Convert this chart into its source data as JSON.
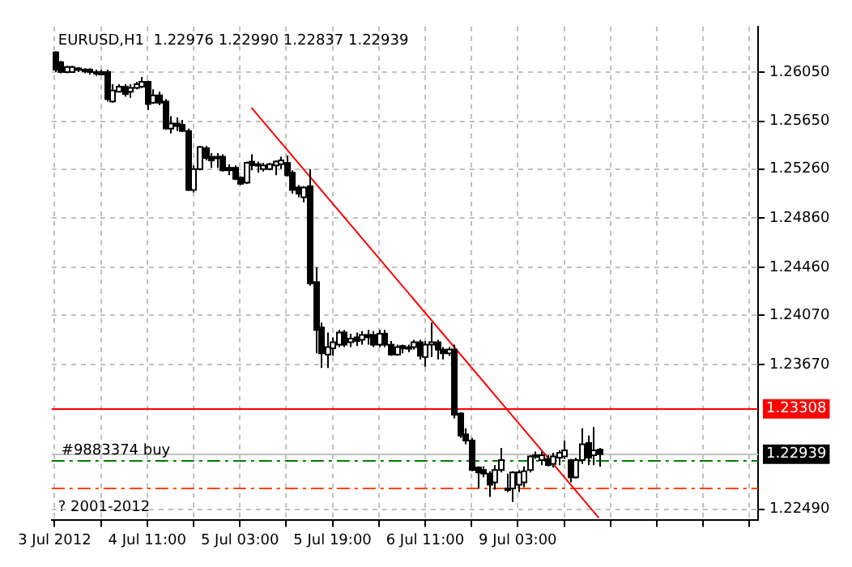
{
  "chart_data": {
    "type": "candlestick",
    "title": "EURUSD,H1  1.22976 1.22990 1.22837 1.22939",
    "categories": [
      "3 Jul 2012",
      null,
      null,
      null,
      null,
      null,
      null,
      null,
      null,
      null,
      null,
      null,
      null,
      null,
      null,
      null,
      "4 Jul 11:00",
      null,
      null,
      null,
      null,
      null,
      null,
      null,
      null,
      null,
      null,
      null,
      null,
      null,
      null,
      null,
      "5 Jul 03:00",
      null,
      null,
      null,
      null,
      null,
      null,
      null,
      null,
      null,
      null,
      null,
      null,
      null,
      null,
      null,
      "5 Jul 19:00",
      null,
      null,
      null,
      null,
      null,
      null,
      null,
      null,
      null,
      null,
      null,
      null,
      null,
      null,
      null,
      "6 Jul 11:00",
      null,
      null,
      null,
      null,
      null,
      null,
      null,
      null,
      null,
      null,
      null,
      null,
      null,
      null,
      null,
      "9 Jul 03:00",
      null,
      null,
      null,
      null,
      null,
      null,
      null,
      null,
      null,
      null,
      null,
      null,
      null,
      null,
      null,
      null,
      null,
      null,
      null,
      null,
      null,
      null,
      null,
      null,
      null,
      null,
      null,
      null,
      null,
      null,
      null,
      null,
      null,
      null,
      null,
      null,
      null,
      null,
      null,
      null,
      null
    ],
    "ohlc": [
      [
        1.2621,
        1.2622,
        1.2605,
        1.2607
      ],
      [
        1.2613,
        1.2614,
        1.2604,
        1.2605
      ],
      [
        1.2605,
        1.261,
        1.2604,
        1.2609
      ],
      [
        1.2605,
        1.261,
        1.2605,
        1.2609
      ],
      [
        1.2608,
        1.2609,
        1.2605,
        1.2607
      ],
      [
        1.2607,
        1.2608,
        1.2604,
        1.2606
      ],
      [
        1.2607,
        1.2608,
        1.2603,
        1.2605
      ],
      [
        1.2605,
        1.2607,
        1.2602,
        1.2604
      ],
      [
        1.2605,
        1.2607,
        1.2603,
        1.2603
      ],
      [
        1.2605,
        1.2607,
        1.2581,
        1.2583
      ],
      [
        1.2581,
        1.2595,
        1.258,
        1.259
      ],
      [
        1.2589,
        1.2595,
        1.2589,
        1.2593
      ],
      [
        1.2593,
        1.2595,
        1.2585,
        1.2587
      ],
      [
        1.2589,
        1.2595,
        1.2584,
        1.2592
      ],
      [
        1.2592,
        1.2597,
        1.2591,
        1.2595
      ],
      [
        1.2593,
        1.2601,
        1.2592,
        1.2597
      ],
      [
        1.2597,
        1.2598,
        1.2574,
        1.2579
      ],
      [
        1.258,
        1.2591,
        1.2579,
        1.2586
      ],
      [
        1.2586,
        1.2589,
        1.2578,
        1.258
      ],
      [
        1.2581,
        1.2583,
        1.2558,
        1.2559
      ],
      [
        1.2559,
        1.2569,
        1.2555,
        1.2563
      ],
      [
        1.2563,
        1.2568,
        1.2557,
        1.2561
      ],
      [
        1.2562,
        1.2566,
        1.2556,
        1.2557
      ],
      [
        1.2557,
        1.2559,
        1.2508,
        1.2509
      ],
      [
        1.2509,
        1.2529,
        1.2507,
        1.2526
      ],
      [
        1.2526,
        1.2545,
        1.2525,
        1.2544
      ],
      [
        1.2543,
        1.2545,
        1.2533,
        1.2535
      ],
      [
        1.2536,
        1.2539,
        1.2527,
        1.2533
      ],
      [
        1.2536,
        1.2539,
        1.2527,
        1.2535
      ],
      [
        1.2536,
        1.2538,
        1.2524,
        1.2525
      ],
      [
        1.2527,
        1.253,
        1.2521,
        1.2525
      ],
      [
        1.2527,
        1.2529,
        1.2517,
        1.2518
      ],
      [
        1.2519,
        1.252,
        1.2513,
        1.2514
      ],
      [
        1.2515,
        1.2532,
        1.2514,
        1.2531
      ],
      [
        1.2532,
        1.2538,
        1.2525,
        1.2529
      ],
      [
        1.253,
        1.2532,
        1.2523,
        1.2529
      ],
      [
        1.2526,
        1.2531,
        1.2524,
        1.2529
      ],
      [
        1.2526,
        1.2531,
        1.2525,
        1.253
      ],
      [
        1.2529,
        1.2533,
        1.2521,
        1.2532
      ],
      [
        1.253,
        1.2536,
        1.2526,
        1.2533
      ],
      [
        1.2531,
        1.2537,
        1.252,
        1.2521
      ],
      [
        1.2523,
        1.2525,
        1.2506,
        1.2509
      ],
      [
        1.2511,
        1.2513,
        1.2503,
        1.2506
      ],
      [
        1.2503,
        1.2512,
        1.2499,
        1.2511
      ],
      [
        1.2512,
        1.2526,
        1.2431,
        1.2433
      ],
      [
        1.2434,
        1.2446,
        1.2376,
        1.2395
      ],
      [
        1.2397,
        1.2401,
        1.2364,
        1.2376
      ],
      [
        1.2375,
        1.2393,
        1.2364,
        1.2381
      ],
      [
        1.238,
        1.2389,
        1.2374,
        1.2385
      ],
      [
        1.2383,
        1.2395,
        1.2381,
        1.2393
      ],
      [
        1.2393,
        1.2395,
        1.2381,
        1.2383
      ],
      [
        1.2385,
        1.2392,
        1.2381,
        1.2388
      ],
      [
        1.2389,
        1.2393,
        1.2382,
        1.2386
      ],
      [
        1.2387,
        1.2394,
        1.2383,
        1.2391
      ],
      [
        1.2391,
        1.2395,
        1.2383,
        1.2389
      ],
      [
        1.2391,
        1.2394,
        1.2381,
        1.2383
      ],
      [
        1.2383,
        1.2395,
        1.2381,
        1.2392
      ],
      [
        1.2392,
        1.2395,
        1.2381,
        1.2383
      ],
      [
        1.2383,
        1.2386,
        1.2374,
        1.2375
      ],
      [
        1.2375,
        1.2383,
        1.2374,
        1.2381
      ],
      [
        1.2382,
        1.2383,
        1.2376,
        1.238
      ],
      [
        1.2381,
        1.2383,
        1.2377,
        1.238
      ],
      [
        1.2381,
        1.2387,
        1.2379,
        1.2385
      ],
      [
        1.2385,
        1.2387,
        1.2371,
        1.2374
      ],
      [
        1.2373,
        1.2386,
        1.2365,
        1.2383
      ],
      [
        1.2383,
        1.2401,
        1.2373,
        1.2385
      ],
      [
        1.2385,
        1.2387,
        1.2371,
        1.2379
      ],
      [
        1.2379,
        1.2381,
        1.2371,
        1.2376
      ],
      [
        1.2376,
        1.2381,
        1.2374,
        1.2379
      ],
      [
        1.2379,
        1.2383,
        1.2323,
        1.2326
      ],
      [
        1.2327,
        1.2328,
        1.2307,
        1.2309
      ],
      [
        1.231,
        1.2315,
        1.2302,
        1.2305
      ],
      [
        1.2305,
        1.2307,
        1.228,
        1.2281
      ],
      [
        1.2283,
        1.2284,
        1.2266,
        1.2279
      ],
      [
        1.2281,
        1.2284,
        1.2275,
        1.2278
      ],
      [
        1.2278,
        1.228,
        1.2259,
        1.2269
      ],
      [
        1.2271,
        1.2285,
        1.2265,
        1.2281
      ],
      [
        1.2281,
        1.2299,
        1.2279,
        1.2289
      ],
      [
        1.2266,
        1.2278,
        1.2263,
        1.2265
      ],
      [
        1.2266,
        1.228,
        1.2255,
        1.2279
      ],
      [
        1.2269,
        1.2281,
        1.2263,
        1.2279
      ],
      [
        1.2271,
        1.2284,
        1.2267,
        1.228
      ],
      [
        1.2281,
        1.2293,
        1.2279,
        1.2292
      ],
      [
        1.2293,
        1.2296,
        1.229,
        1.2292
      ],
      [
        1.2289,
        1.2296,
        1.2285,
        1.2293
      ],
      [
        1.229,
        1.2293,
        1.2284,
        1.2285
      ],
      [
        1.2286,
        1.2295,
        1.2283,
        1.2292
      ],
      [
        1.2291,
        1.2297,
        1.2285,
        1.2295
      ],
      [
        1.2292,
        1.2305,
        1.229,
        1.2297
      ],
      [
        1.2289,
        1.229,
        1.2271,
        1.2275
      ],
      [
        1.2275,
        1.2291,
        1.2274,
        1.2289
      ],
      [
        1.2289,
        1.2315,
        1.2286,
        1.2302
      ],
      [
        1.2303,
        1.2309,
        1.2285,
        1.2291
      ],
      [
        1.2293,
        1.2316,
        1.2285,
        1.2297
      ],
      [
        1.22976,
        1.2299,
        1.22837,
        1.22939
      ],
      null,
      null,
      null,
      null,
      null,
      null,
      null,
      null,
      null,
      null,
      null,
      null,
      null,
      null,
      null,
      null,
      null,
      null,
      null,
      null,
      null,
      null,
      null,
      null,
      null,
      null,
      null
    ],
    "series": [
      {
        "type": "line",
        "color": "#ff0000",
        "values": [
          null,
          null,
          null,
          null,
          null,
          null,
          null,
          null,
          null,
          null,
          null,
          null,
          null,
          null,
          null,
          null,
          null,
          null,
          null,
          null,
          null,
          null,
          null,
          null,
          null,
          null,
          null,
          null,
          null,
          null,
          null,
          null,
          null,
          null,
          1.2576,
          null,
          null,
          null,
          null,
          null,
          null,
          null,
          null,
          null,
          null,
          null,
          null,
          null,
          null,
          null,
          null,
          null,
          null,
          null,
          null,
          null,
          null,
          null,
          null,
          null,
          null,
          null,
          null,
          null,
          null,
          null,
          null,
          null,
          null,
          null,
          null,
          null,
          null,
          null,
          null,
          null,
          null,
          null,
          null,
          null,
          null,
          null,
          null,
          null,
          null,
          null,
          null,
          null,
          null,
          null,
          null,
          null,
          null,
          null,
          1.2242,
          null,
          null,
          null,
          null,
          null,
          null,
          null,
          null,
          null,
          null,
          null,
          null,
          null,
          null,
          null,
          null,
          null,
          null,
          null,
          null,
          null,
          null,
          null,
          null,
          null,
          null,
          null
        ]
      }
    ],
    "ylim": [
      1.224,
      1.2642
    ],
    "yticks": [
      {
        "value": 1.2605,
        "label": "1.26050"
      },
      {
        "value": 1.2565,
        "label": "1.25650"
      },
      {
        "value": 1.2526,
        "label": "1.25260"
      },
      {
        "value": 1.2486,
        "label": "1.24860"
      },
      {
        "value": 1.2446,
        "label": "1.24460"
      },
      {
        "value": 1.2407,
        "label": "1.24070"
      },
      {
        "value": 1.2367,
        "label": "1.23670"
      },
      {
        "value": 1.2249,
        "label": "1.22490"
      }
    ],
    "ref_lines": [
      {
        "axis": "y",
        "value": 1.23308,
        "label": "1.23308",
        "color": "#ff0000",
        "line_style": "solid"
      },
      {
        "axis": "y",
        "value": 1.22939,
        "label": "1.22939",
        "color": "#c0c0c0",
        "line_style": "solid"
      },
      {
        "axis": "y",
        "value": 1.2289,
        "label": "#9883374 buy",
        "color": "#008000",
        "line_style": "dashed"
      },
      {
        "axis": "y",
        "value": 1.2266,
        "color": "#ff4500",
        "line_style": "dashed"
      }
    ],
    "annotations": [
      "? 2001-2012"
    ],
    "grid": true,
    "legend": false,
    "marker": "none"
  }
}
